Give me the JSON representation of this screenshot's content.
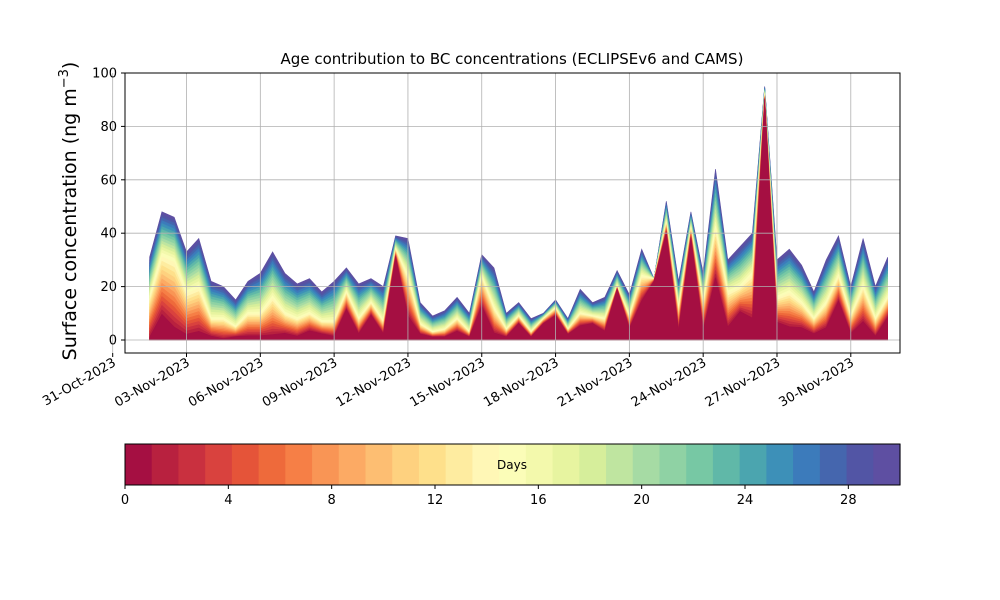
{
  "chart_data": {
    "type": "area",
    "title": "Age contribution to BC concentrations (ECLIPSEv6 and CAMS)",
    "ylabel_main": "Surface concentration (ng m",
    "ylabel_sup": "−3",
    "ylabel_close": ")",
    "xlabel": "",
    "ylim": [
      0,
      100
    ],
    "yticks": [
      0,
      20,
      40,
      60,
      80,
      100
    ],
    "xlim": [
      "2023-10-31T12:00",
      "2023-12-02T00:00"
    ],
    "xticks": [
      "31-Oct-2023",
      "03-Nov-2023",
      "06-Nov-2023",
      "09-Nov-2023",
      "12-Nov-2023",
      "15-Nov-2023",
      "18-Nov-2023",
      "21-Nov-2023",
      "24-Nov-2023",
      "27-Nov-2023",
      "30-Nov-2023"
    ],
    "xtick_dates": [
      "2023-10-31",
      "2023-11-03",
      "2023-11-06",
      "2023-11-09",
      "2023-11-12",
      "2023-11-15",
      "2023-11-18",
      "2023-11-21",
      "2023-11-24",
      "2023-11-27",
      "2023-11-30"
    ],
    "grid": true,
    "colorbar": {
      "label": "Days",
      "min": 0,
      "max": 30,
      "ticks": [
        0,
        4,
        8,
        12,
        16,
        20,
        24,
        28
      ],
      "colormap": "Spectral",
      "colors": [
        "#a50f42",
        "#b8213f",
        "#c9303f",
        "#d9423e",
        "#e55439",
        "#ee6a3b",
        "#f67f46",
        "#f99555",
        "#fcaa64",
        "#fdbe72",
        "#fed17f",
        "#fee08b",
        "#feeca0",
        "#fff7b6",
        "#fbfdb8",
        "#f3f9ac",
        "#e7f4a0",
        "#d6ee9b",
        "#bfe5a0",
        "#a6dba4",
        "#8fd2a4",
        "#77c8a4",
        "#60b8a8",
        "#4ba5af",
        "#3d90b8",
        "#3c7bbb",
        "#4566ae",
        "#5255a5",
        "#5e4fa2"
      ]
    },
    "x": [
      "2023-11-01T12:00",
      "2023-11-02T00:00",
      "2023-11-02T12:00",
      "2023-11-03T00:00",
      "2023-11-03T12:00",
      "2023-11-04T00:00",
      "2023-11-04T12:00",
      "2023-11-05T00:00",
      "2023-11-05T12:00",
      "2023-11-06T00:00",
      "2023-11-06T12:00",
      "2023-11-07T00:00",
      "2023-11-07T12:00",
      "2023-11-08T00:00",
      "2023-11-08T12:00",
      "2023-11-09T00:00",
      "2023-11-09T12:00",
      "2023-11-10T00:00",
      "2023-11-10T12:00",
      "2023-11-11T00:00",
      "2023-11-11T12:00",
      "2023-11-12T00:00",
      "2023-11-12T12:00",
      "2023-11-13T00:00",
      "2023-11-13T12:00",
      "2023-11-14T00:00",
      "2023-11-14T12:00",
      "2023-11-15T00:00",
      "2023-11-15T12:00",
      "2023-11-16T00:00",
      "2023-11-16T12:00",
      "2023-11-17T00:00",
      "2023-11-17T12:00",
      "2023-11-18T00:00",
      "2023-11-18T12:00",
      "2023-11-19T00:00",
      "2023-11-19T12:00",
      "2023-11-20T00:00",
      "2023-11-20T12:00",
      "2023-11-21T00:00",
      "2023-11-21T12:00",
      "2023-11-22T00:00",
      "2023-11-22T12:00",
      "2023-11-23T00:00",
      "2023-11-23T12:00",
      "2023-11-24T00:00",
      "2023-11-24T12:00",
      "2023-11-25T00:00",
      "2023-11-25T12:00",
      "2023-11-26T00:00",
      "2023-11-26T12:00",
      "2023-11-27T00:00",
      "2023-11-27T12:00",
      "2023-11-28T00:00",
      "2023-11-28T12:00",
      "2023-11-29T00:00",
      "2023-11-29T12:00",
      "2023-11-30T00:00",
      "2023-11-30T12:00",
      "2023-12-01T00:00",
      "2023-12-01T12:00"
    ],
    "total": [
      31,
      48,
      46,
      33,
      38,
      22,
      20,
      15,
      22,
      25,
      33,
      25,
      21,
      23,
      18,
      22,
      27,
      21,
      23,
      20,
      39,
      38,
      14,
      9,
      11,
      16,
      10,
      32,
      27,
      10,
      14,
      8,
      10,
      15,
      8,
      19,
      14,
      16,
      26,
      17,
      34,
      23,
      52,
      22,
      48,
      25,
      64,
      30,
      35,
      40,
      95,
      30,
      34,
      28,
      18,
      30,
      39,
      20,
      38,
      20,
      31
    ],
    "fresh": [
      0,
      8,
      3,
      1,
      2,
      1,
      0,
      1,
      1,
      1,
      1,
      2,
      1,
      3,
      2,
      1,
      11,
      2,
      9,
      2,
      31,
      8,
      2,
      1,
      1,
      3,
      1,
      12,
      2,
      1,
      6,
      1,
      6,
      9,
      2,
      5,
      6,
      3,
      19,
      4,
      14,
      22,
      40,
      3,
      38,
      3,
      22,
      4,
      10,
      7,
      90,
      6,
      4,
      4,
      2,
      4,
      14,
      2,
      6,
      1,
      8
    ],
    "mid": [
      16,
      32,
      30,
      18,
      20,
      8,
      8,
      5,
      10,
      10,
      16,
      10,
      8,
      10,
      7,
      7,
      18,
      8,
      14,
      7,
      34,
      24,
      6,
      3,
      4,
      8,
      3,
      24,
      12,
      4,
      9,
      3,
      8,
      12,
      4,
      10,
      9,
      8,
      20,
      9,
      24,
      23,
      44,
      12,
      42,
      14,
      42,
      18,
      20,
      25,
      92,
      16,
      18,
      14,
      8,
      14,
      24,
      9,
      20,
      8,
      16
    ]
  }
}
